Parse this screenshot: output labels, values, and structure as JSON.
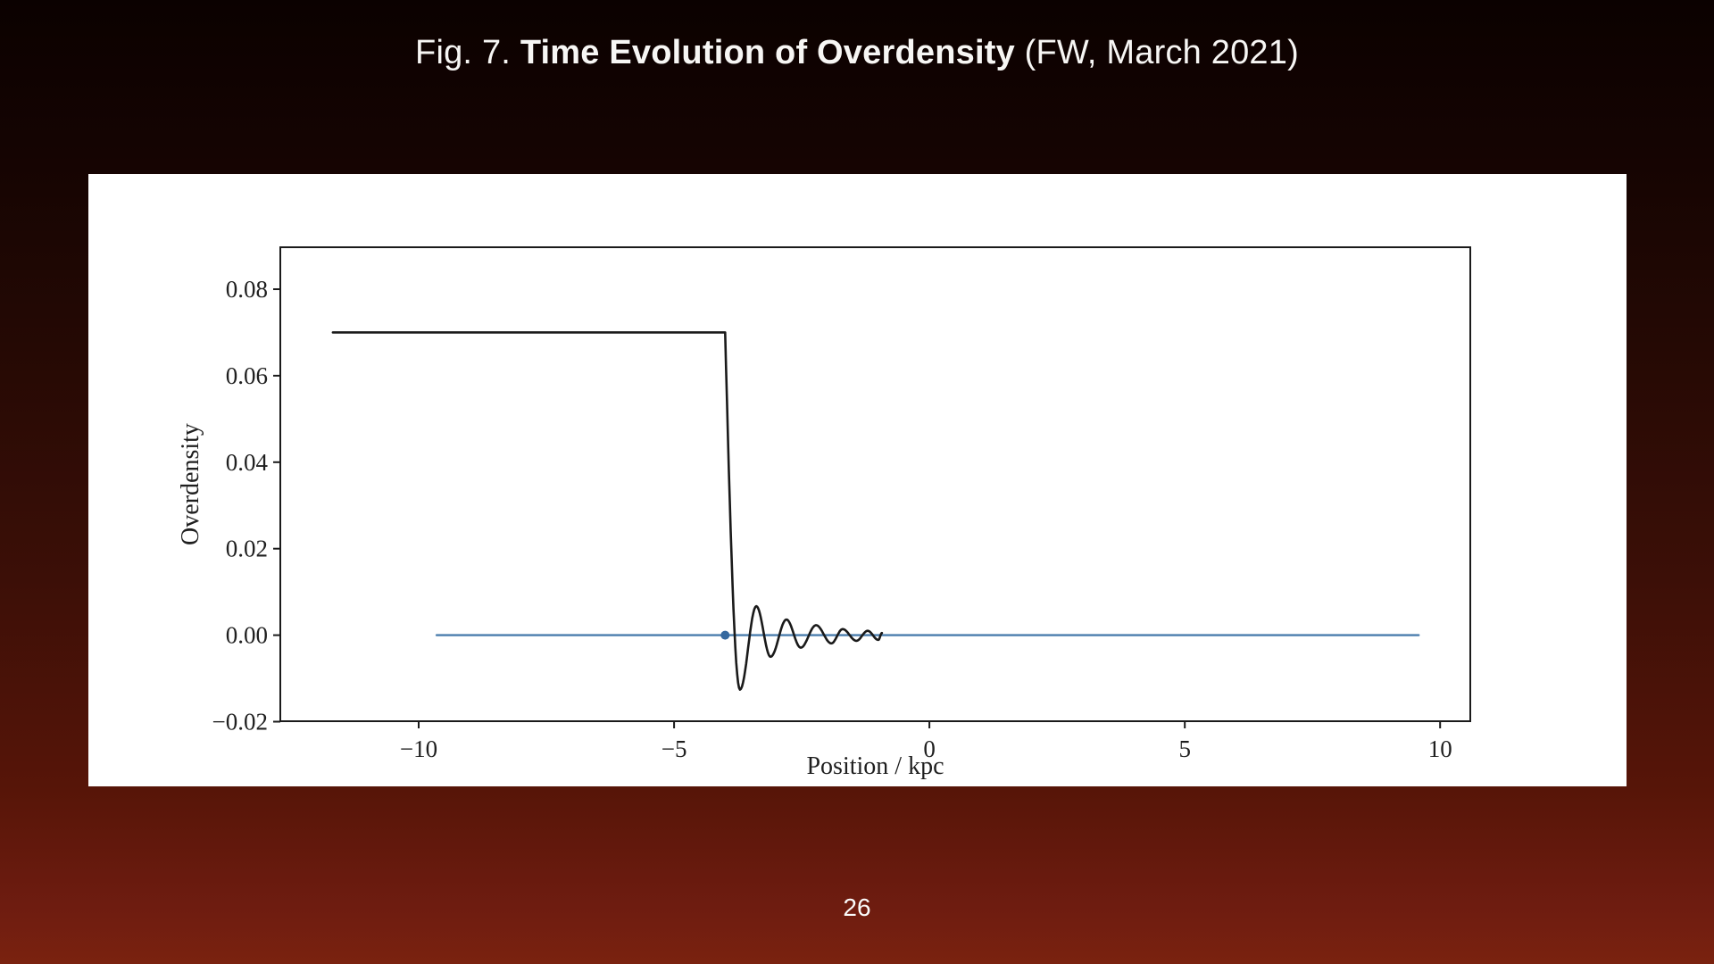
{
  "slide": {
    "title_prefix": "Fig. 7. ",
    "title_bold": "Time Evolution of Overdensity",
    "title_suffix": " (FW, March 2021)",
    "page_number": "26"
  },
  "colors": {
    "background_top": "#0b0100",
    "background_bottom": "#7a220f",
    "panel": "#ffffff",
    "axis": "#1a1a1a",
    "curve": "#1a1a1a",
    "zero_line": "#4a7dad",
    "marker": "#36699f",
    "text_on_dark": "#f7f6f4"
  },
  "chart_data": {
    "type": "line",
    "title": "",
    "xlabel": "Position / kpc",
    "ylabel": "Overdensity",
    "xlim": [
      -12.71,
      10.59
    ],
    "ylim": [
      -0.0199,
      0.0897
    ],
    "grid": false,
    "legend": "none",
    "x_ticks": [
      {
        "v": -10,
        "label": "−10"
      },
      {
        "v": -5,
        "label": "−5"
      },
      {
        "v": 0,
        "label": "0"
      },
      {
        "v": 5,
        "label": "5"
      },
      {
        "v": 10,
        "label": "10"
      }
    ],
    "y_ticks": [
      {
        "v": -0.02,
        "label": "−0.02"
      },
      {
        "v": 0.0,
        "label": "0.00"
      },
      {
        "v": 0.02,
        "label": "0.02"
      },
      {
        "v": 0.04,
        "label": "0.04"
      },
      {
        "v": 0.06,
        "label": "0.06"
      },
      {
        "v": 0.08,
        "label": "0.08"
      }
    ],
    "series": [
      {
        "name": "zero-baseline",
        "color": "#4a7dad",
        "width": 2.4,
        "keypoints": [
          {
            "x": -9.65,
            "v": 0.0,
            "ease": "start"
          },
          {
            "x": 9.58,
            "v": 0.0,
            "ease": "linear"
          }
        ]
      },
      {
        "name": "overdensity-curve",
        "color": "#1a1a1a",
        "width": 2.6,
        "keypoints": [
          {
            "x": -11.68,
            "v": 0.07,
            "ease": "start"
          },
          {
            "x": -4.0,
            "v": 0.07,
            "ease": "linear"
          },
          {
            "x": -3.71,
            "v": -0.0126,
            "ease": "sin"
          },
          {
            "x": -3.39,
            "v": 0.0067,
            "ease": "cos"
          },
          {
            "x": -3.11,
            "v": -0.005,
            "ease": "cos"
          },
          {
            "x": -2.8,
            "v": 0.0036,
            "ease": "cos"
          },
          {
            "x": -2.52,
            "v": -0.0029,
            "ease": "cos"
          },
          {
            "x": -2.22,
            "v": 0.0023,
            "ease": "cos"
          },
          {
            "x": -1.92,
            "v": -0.0019,
            "ease": "cos"
          },
          {
            "x": -1.7,
            "v": 0.0014,
            "ease": "cos"
          },
          {
            "x": -1.43,
            "v": -0.0013,
            "ease": "cos"
          },
          {
            "x": -1.21,
            "v": 0.001,
            "ease": "cos"
          },
          {
            "x": -1.0,
            "v": -0.0011,
            "ease": "cos"
          },
          {
            "x": -0.93,
            "v": 0.0005,
            "ease": "cos"
          }
        ]
      }
    ],
    "marker": {
      "x": -4.0,
      "v": 0.0,
      "radius": 5,
      "color": "#36699f"
    }
  }
}
